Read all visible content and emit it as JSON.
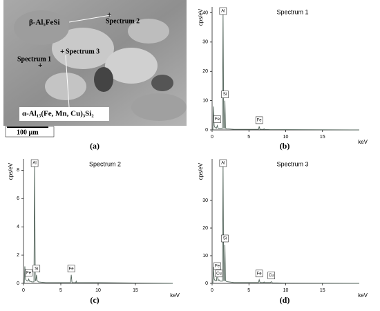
{
  "image_panel": {
    "panel_label": "(a)",
    "labels": [
      "β-Al₅FeSi",
      "Spectrum 2",
      "Spectrum 1",
      "Spectrum 3",
      "α-Al₁₅(Fe, Mn, Cu)₃Si₂"
    ],
    "scale_bar": "100 µm"
  },
  "chart_data": [
    {
      "type": "line",
      "title": "Spectrum 1",
      "panel_label": "(b)",
      "xlabel": "keV",
      "ylabel": "cps/eV",
      "x": [
        0,
        0.1,
        0.18,
        0.28,
        0.4,
        0.6,
        0.7,
        0.8,
        0.93,
        1.1,
        1.4,
        1.49,
        1.58,
        1.66,
        1.74,
        1.82,
        2,
        3,
        6.3,
        6.4,
        6.5,
        7.0,
        7.06,
        7.12,
        7.9,
        8.05,
        8.2,
        10,
        20
      ],
      "series": [
        {
          "color": "#4d5f55",
          "values": [
            0,
            0,
            8,
            1.5,
            0.8,
            0.6,
            1.5,
            0.6,
            0.6,
            0.5,
            0.5,
            40,
            0.6,
            0.6,
            10,
            0.6,
            0.4,
            0.2,
            0.2,
            1.2,
            0.2,
            0.2,
            0.4,
            0.2,
            0.1,
            0.1,
            0.1,
            0.1,
            0
          ]
        }
      ],
      "xlim": [
        0,
        20
      ],
      "ylim": [
        0,
        42
      ],
      "xticks": [
        0,
        5,
        10,
        15
      ],
      "yticks": [
        0,
        10,
        20,
        30,
        40
      ],
      "annotations": [
        {
          "text": "Al",
          "x": 1.49
        },
        {
          "text": "Si",
          "x": 1.74
        },
        {
          "text": "Fe",
          "x": 0.7
        },
        {
          "text": "Fe",
          "x": 6.4
        }
      ]
    },
    {
      "type": "line",
      "title": "Spectrum 2",
      "panel_label": "(c)",
      "xlabel": "keV",
      "ylabel": "cps/eV",
      "x": [
        0,
        0.1,
        0.18,
        0.28,
        0.4,
        0.6,
        0.7,
        0.8,
        0.93,
        1.1,
        1.4,
        1.49,
        1.58,
        1.66,
        1.74,
        1.82,
        2,
        3,
        6.3,
        6.4,
        6.5,
        7.0,
        7.06,
        7.12,
        7.9,
        8.05,
        8.2,
        10,
        20
      ],
      "series": [
        {
          "color": "#4d5f55",
          "values": [
            0,
            0,
            1.2,
            0.3,
            0.2,
            0.15,
            0.3,
            0.15,
            0.15,
            0.1,
            0.1,
            8.5,
            0.2,
            0.2,
            0.6,
            0.2,
            0.1,
            0.05,
            0.05,
            0.6,
            0.05,
            0.05,
            0.15,
            0.05,
            0.05,
            0.05,
            0.05,
            0.05,
            0
          ]
        }
      ],
      "xlim": [
        0,
        20
      ],
      "ylim": [
        0,
        8.8
      ],
      "xticks": [
        0,
        5,
        10,
        15
      ],
      "yticks": [
        0,
        2,
        4,
        6,
        8
      ],
      "annotations": [
        {
          "text": "Al",
          "x": 1.49
        },
        {
          "text": "Si",
          "x": 1.74
        },
        {
          "text": "Fe",
          "x": 0.7
        },
        {
          "text": "Fe",
          "x": 6.4
        }
      ]
    },
    {
      "type": "line",
      "title": "Spectrum 3",
      "panel_label": "(d)",
      "xlabel": "keV",
      "ylabel": "cps/eV",
      "x": [
        0,
        0.1,
        0.18,
        0.28,
        0.4,
        0.6,
        0.7,
        0.8,
        0.93,
        1.1,
        1.4,
        1.49,
        1.58,
        1.66,
        1.74,
        1.82,
        2,
        3,
        6.3,
        6.4,
        6.5,
        7.0,
        7.06,
        7.12,
        7.9,
        8.05,
        8.2,
        10,
        20
      ],
      "series": [
        {
          "color": "#4d5f55",
          "values": [
            0,
            0,
            6,
            1.5,
            1,
            1,
            4,
            1,
            1.3,
            0.8,
            0.8,
            43,
            1,
            1,
            14,
            1,
            0.6,
            0.3,
            0.3,
            1.3,
            0.3,
            0.3,
            0.5,
            0.3,
            0.3,
            0.6,
            0.2,
            0.1,
            0
          ]
        }
      ],
      "xlim": [
        0,
        20
      ],
      "ylim": [
        0,
        45
      ],
      "xticks": [
        0,
        5,
        10,
        15
      ],
      "yticks": [
        0,
        10,
        20,
        30
      ],
      "annotations": [
        {
          "text": "Al",
          "x": 1.49
        },
        {
          "text": "Si",
          "x": 1.74
        },
        {
          "text": "Fe",
          "x": 0.7
        },
        {
          "text": "Cu",
          "x": 0.93
        },
        {
          "text": "Fe",
          "x": 6.4
        },
        {
          "text": "Cu",
          "x": 8.05
        }
      ]
    }
  ]
}
